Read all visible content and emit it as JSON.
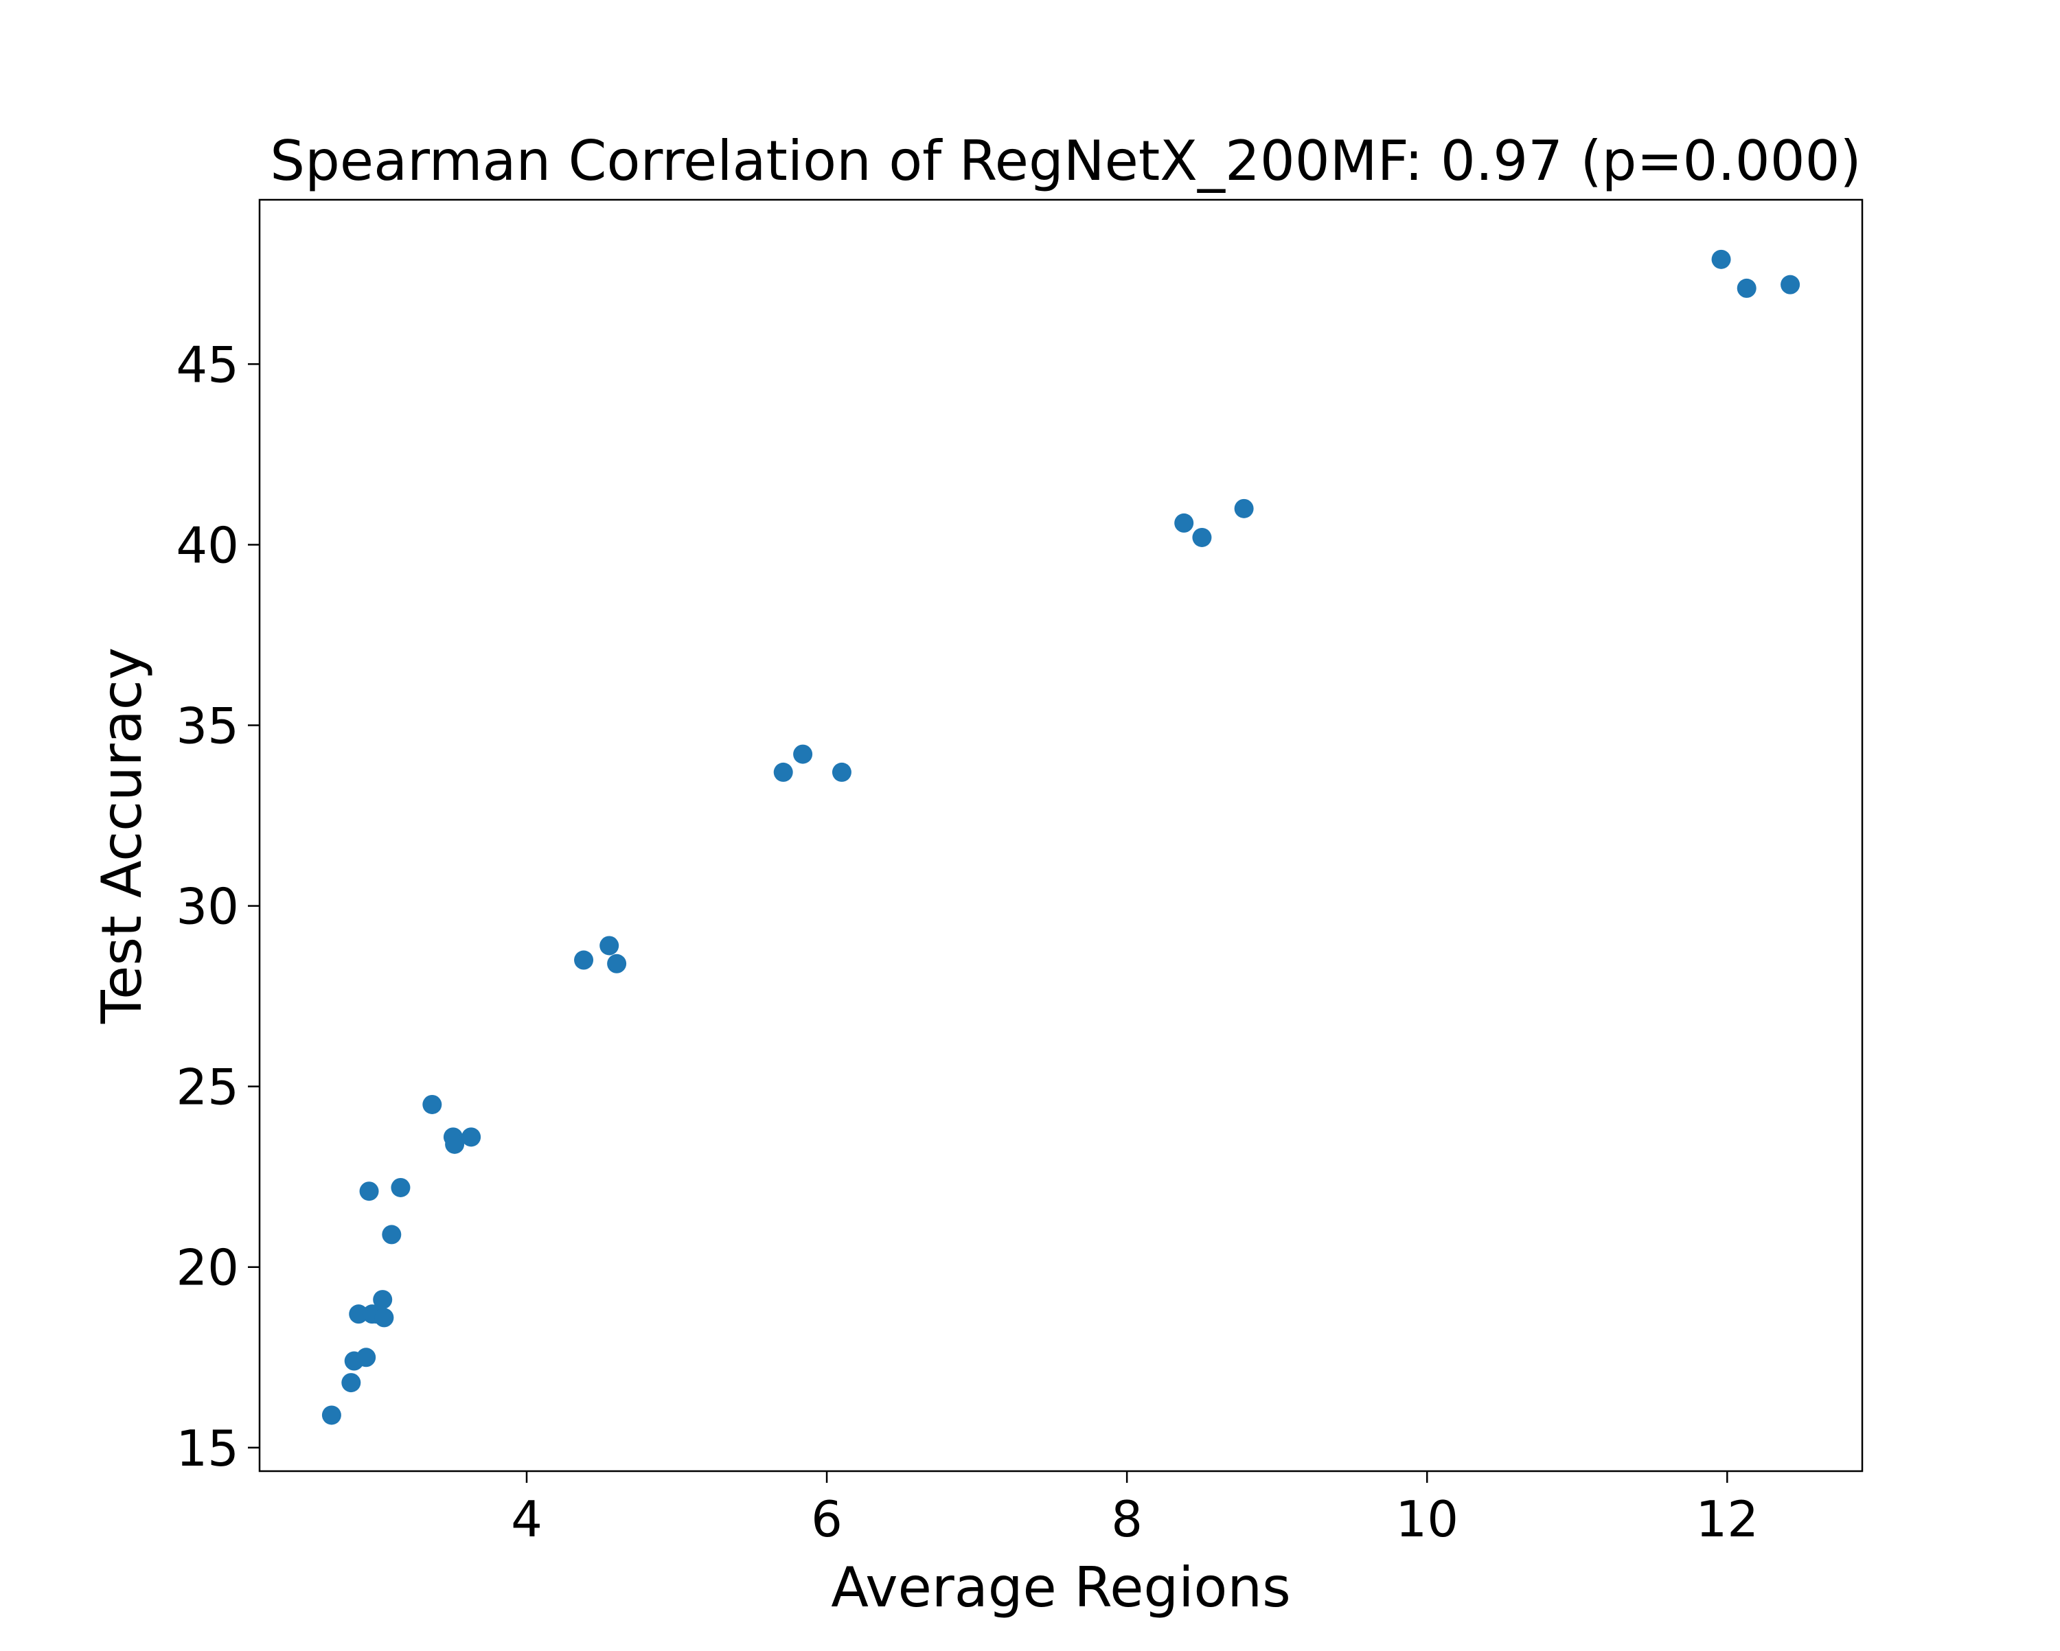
{
  "chart_data": {
    "type": "scatter",
    "title": "Spearman Correlation of RegNetX_200MF: 0.97 (p=0.000)",
    "xlabel": "Average Regions",
    "ylabel": "Test Accuracy",
    "xlim": [
      2.22,
      12.9
    ],
    "ylim": [
      14.35,
      49.55
    ],
    "xticks": [
      4,
      6,
      8,
      10,
      12
    ],
    "xtick_labels": [
      "4",
      "6",
      "8",
      "10",
      "12"
    ],
    "yticks": [
      15,
      20,
      25,
      30,
      35,
      40,
      45
    ],
    "ytick_labels": [
      "15",
      "20",
      "25",
      "30",
      "35",
      "40",
      "45"
    ],
    "grid": false,
    "legend": "none",
    "marker_color": "#1f77b4",
    "x": [
      2.7,
      2.83,
      2.85,
      2.88,
      2.93,
      2.95,
      2.97,
      3.0,
      3.04,
      3.05,
      3.1,
      3.16,
      3.37,
      3.51,
      3.52,
      3.63,
      4.38,
      4.55,
      4.6,
      5.71,
      5.84,
      6.1,
      8.38,
      8.5,
      8.78,
      11.96,
      12.13,
      12.42
    ],
    "y": [
      15.9,
      16.8,
      17.4,
      18.7,
      17.5,
      22.1,
      18.7,
      18.7,
      19.1,
      18.6,
      20.9,
      22.2,
      24.5,
      23.6,
      23.4,
      23.6,
      28.5,
      28.9,
      28.4,
      33.7,
      34.2,
      33.7,
      40.6,
      40.2,
      41.0,
      47.9,
      47.1,
      47.2
    ]
  }
}
